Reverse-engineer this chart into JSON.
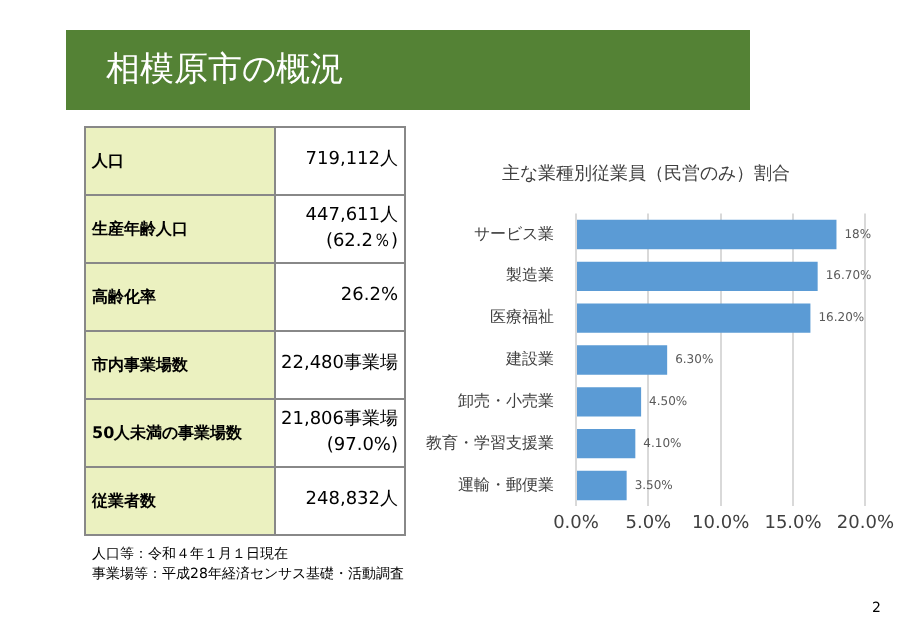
{
  "chart_data": [
    {
      "type": "other",
      "title": "相模原市の概況",
      "categories": [
        "人口",
        "生産年齢人口",
        "高齢化率",
        "市内事業場数",
        "50人未満の事業場数",
        "従業者数"
      ],
      "cell_labels": [
        [
          "719,112人"
        ],
        [
          "447,611人",
          "(62.2％)"
        ],
        [
          "26.2%"
        ],
        [
          "22,480事業場"
        ],
        [
          "21,806事業場",
          "(97.0%)"
        ],
        [
          "248,832人"
        ]
      ],
      "annotations": [
        "人口等：令和４年１月１日現在",
        "事業場等：平成28年経済センサス基礎・活動調査",
        "2"
      ]
    },
    {
      "type": "bar",
      "orientation": "horizontal",
      "title": "主な業種別従業員（民営のみ）割合",
      "categories": [
        "サービス業",
        "製造業",
        "医療福祉",
        "建設業",
        "卸売・小売業",
        "教育・学習支援業",
        "運輸・郵便業"
      ],
      "values": [
        18,
        16.7,
        16.2,
        6.3,
        4.5,
        4.1,
        3.5
      ],
      "value_labels": [
        "18%",
        "16.70%",
        "16.20%",
        "6.30%",
        "4.50%",
        "4.10%",
        "3.50%"
      ],
      "color": "#5b9bd5",
      "xlim": [
        0,
        20
      ],
      "xticks": [
        {
          "value": 0,
          "label": "0.0%"
        },
        {
          "value": 5,
          "label": "5.0%"
        },
        {
          "value": 10,
          "label": "10.0%"
        },
        {
          "value": 15,
          "label": "15.0%"
        },
        {
          "value": 20,
          "label": "20.0%"
        }
      ],
      "grid": "x"
    }
  ]
}
